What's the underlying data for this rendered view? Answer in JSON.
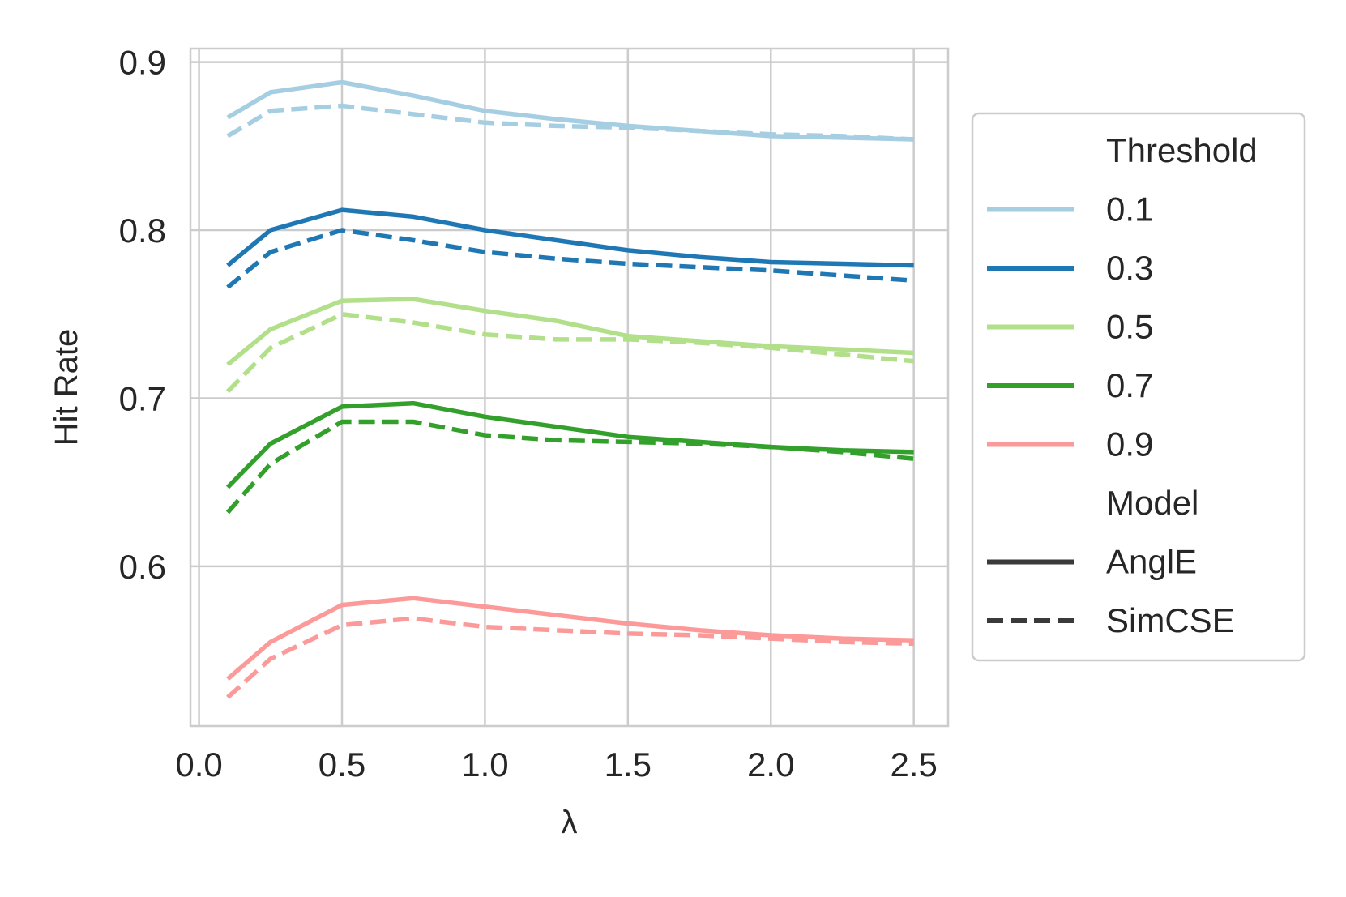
{
  "chart_data": {
    "type": "line",
    "title": "",
    "xlabel": "λ",
    "ylabel": "Hit Rate",
    "xlim": [
      -0.03,
      2.62
    ],
    "ylim": [
      0.505,
      0.908
    ],
    "xticks": [
      0.0,
      0.5,
      1.0,
      1.5,
      2.0,
      2.5
    ],
    "xtick_labels": [
      "0.0",
      "0.5",
      "1.0",
      "1.5",
      "2.0",
      "2.5"
    ],
    "yticks": [
      0.6,
      0.7,
      0.8,
      0.9
    ],
    "ytick_labels": [
      "0.6",
      "0.7",
      "0.8",
      "0.9"
    ],
    "grid": true,
    "legend": {
      "placement": "outside right",
      "hue_title": "Threshold",
      "style_title": "Model",
      "hue_entries": [
        "0.1",
        "0.3",
        "0.5",
        "0.7",
        "0.9"
      ],
      "style_entries": [
        "AnglE",
        "SimCSE"
      ]
    },
    "x": [
      0.1,
      0.25,
      0.5,
      0.75,
      1.0,
      1.25,
      1.5,
      1.75,
      2.0,
      2.25,
      2.5
    ],
    "series": [
      {
        "threshold": "0.1",
        "model": "AnglE",
        "color": "#a6cee3",
        "dash": "solid",
        "values": [
          0.867,
          0.882,
          0.888,
          0.88,
          0.871,
          0.866,
          0.862,
          0.859,
          0.856,
          0.855,
          0.854
        ]
      },
      {
        "threshold": "0.1",
        "model": "SimCSE",
        "color": "#a6cee3",
        "dash": "dashed",
        "values": [
          0.856,
          0.871,
          0.874,
          0.869,
          0.864,
          0.862,
          0.861,
          0.859,
          0.857,
          0.856,
          0.854
        ]
      },
      {
        "threshold": "0.3",
        "model": "AnglE",
        "color": "#1f78b4",
        "dash": "solid",
        "values": [
          0.779,
          0.8,
          0.812,
          0.808,
          0.8,
          0.794,
          0.788,
          0.784,
          0.781,
          0.78,
          0.779
        ]
      },
      {
        "threshold": "0.3",
        "model": "SimCSE",
        "color": "#1f78b4",
        "dash": "dashed",
        "values": [
          0.766,
          0.787,
          0.8,
          0.794,
          0.787,
          0.783,
          0.78,
          0.778,
          0.776,
          0.773,
          0.77
        ]
      },
      {
        "threshold": "0.5",
        "model": "AnglE",
        "color": "#b2df8a",
        "dash": "solid",
        "values": [
          0.72,
          0.741,
          0.758,
          0.759,
          0.752,
          0.746,
          0.737,
          0.734,
          0.731,
          0.729,
          0.727
        ]
      },
      {
        "threshold": "0.5",
        "model": "SimCSE",
        "color": "#b2df8a",
        "dash": "dashed",
        "values": [
          0.704,
          0.73,
          0.75,
          0.745,
          0.738,
          0.735,
          0.735,
          0.733,
          0.73,
          0.726,
          0.722
        ]
      },
      {
        "threshold": "0.7",
        "model": "AnglE",
        "color": "#33a02c",
        "dash": "solid",
        "values": [
          0.647,
          0.673,
          0.695,
          0.697,
          0.689,
          0.683,
          0.677,
          0.674,
          0.671,
          0.669,
          0.668
        ]
      },
      {
        "threshold": "0.7",
        "model": "SimCSE",
        "color": "#33a02c",
        "dash": "dashed",
        "values": [
          0.632,
          0.661,
          0.686,
          0.686,
          0.678,
          0.675,
          0.674,
          0.673,
          0.671,
          0.668,
          0.664
        ]
      },
      {
        "threshold": "0.9",
        "model": "AnglE",
        "color": "#fb9a99",
        "dash": "solid",
        "values": [
          0.533,
          0.555,
          0.577,
          0.581,
          0.576,
          0.571,
          0.566,
          0.562,
          0.559,
          0.557,
          0.556
        ]
      },
      {
        "threshold": "0.9",
        "model": "SimCSE",
        "color": "#fb9a99",
        "dash": "dashed",
        "values": [
          0.522,
          0.545,
          0.565,
          0.569,
          0.564,
          0.562,
          0.56,
          0.559,
          0.557,
          0.555,
          0.554
        ]
      }
    ]
  }
}
